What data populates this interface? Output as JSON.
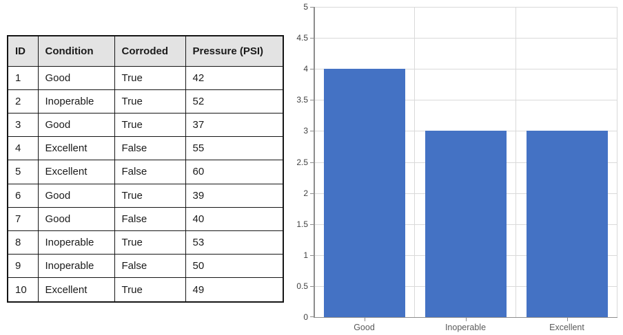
{
  "table": {
    "headers": [
      "ID",
      "Condition",
      "Corroded",
      "Pressure (PSI)"
    ],
    "rows": [
      [
        "1",
        "Good",
        "True",
        "42"
      ],
      [
        "2",
        "Inoperable",
        "True",
        "52"
      ],
      [
        "3",
        "Good",
        "True",
        "37"
      ],
      [
        "4",
        "Excellent",
        "False",
        "55"
      ],
      [
        "5",
        "Excellent",
        "False",
        "60"
      ],
      [
        "6",
        "Good",
        "True",
        "39"
      ],
      [
        "7",
        "Good",
        "False",
        "40"
      ],
      [
        "8",
        "Inoperable",
        "True",
        "53"
      ],
      [
        "9",
        "Inoperable",
        "False",
        "50"
      ],
      [
        "10",
        "Excellent",
        "True",
        "49"
      ]
    ],
    "colors": {
      "border": "#141414",
      "header_bg": "#E3E3E3"
    }
  },
  "chart_data": {
    "type": "bar",
    "title": "",
    "xlabel": "",
    "ylabel": "",
    "categories": [
      "Good",
      "Inoperable",
      "Excellent"
    ],
    "values": [
      4,
      3,
      3
    ],
    "ylim": [
      0,
      5
    ],
    "ytick_step": 0.5,
    "yticks": [
      "5",
      "4.5",
      "4",
      "3.5",
      "3",
      "2.5",
      "2",
      "1.5",
      "1",
      "0.5",
      "0"
    ],
    "grid": true,
    "legend_position": "none",
    "colors": {
      "bar": "#4472C4",
      "gridline": "#D9D9D9",
      "axis": "#8C8C8C",
      "y_tick_label": "#404040",
      "x_label": "#595959"
    }
  }
}
